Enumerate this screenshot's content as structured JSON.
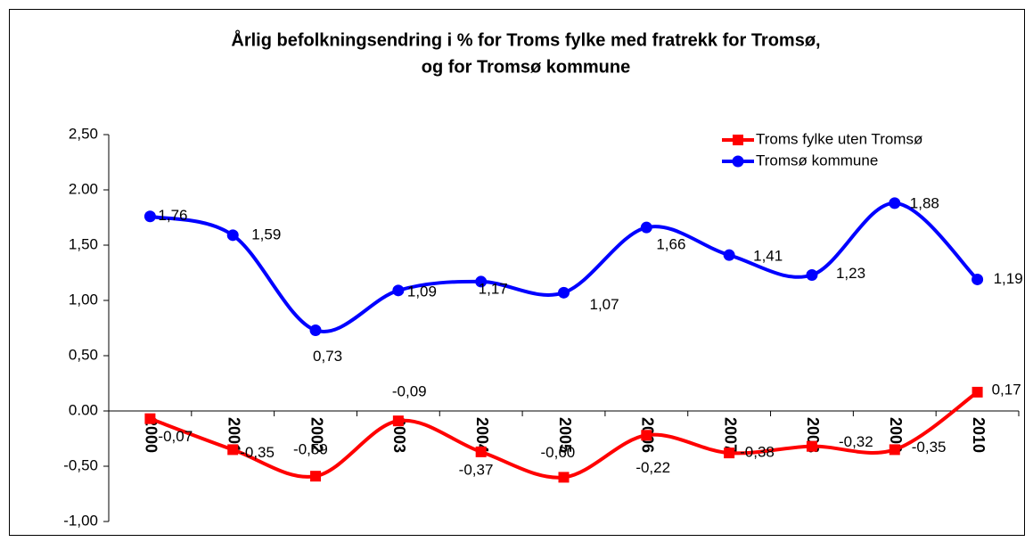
{
  "chart_data": {
    "type": "line",
    "title": [
      "Årlig befolkningsendring i % for Troms fylke med fratrekk for Tromsø,",
      "og for Tromsø kommune"
    ],
    "categories": [
      "2000",
      "2001",
      "2002",
      "2003",
      "2004",
      "2005",
      "2006",
      "2007",
      "2008",
      "2009",
      "2010"
    ],
    "series": [
      {
        "name": "Troms fylke uten Tromsø",
        "color": "#ff0000",
        "marker": "square",
        "values": [
          -0.07,
          -0.35,
          -0.59,
          -0.09,
          -0.37,
          -0.6,
          -0.22,
          -0.38,
          -0.32,
          -0.35,
          0.17
        ],
        "value_labels": [
          "-0,07",
          "-0,35",
          "-0,59",
          "-0,09",
          "-0,37",
          "-0,60",
          "-0,22",
          "-0,38",
          "-0,32",
          "-0,35",
          "0,17"
        ]
      },
      {
        "name": "Tromsø kommune",
        "color": "#0000ff",
        "marker": "circle",
        "values": [
          1.76,
          1.59,
          0.73,
          1.09,
          1.17,
          1.07,
          1.66,
          1.41,
          1.23,
          1.88,
          1.19
        ],
        "value_labels": [
          "1,76",
          "1,59",
          "0,73",
          "1,09",
          "1,17",
          "1,07",
          "1,66",
          "1,41",
          "1,23",
          "1,88",
          "1,19"
        ]
      }
    ],
    "ylim": [
      -1,
      2.5
    ],
    "yticks": [
      {
        "value": 2.5,
        "label": "2,50"
      },
      {
        "value": 2,
        "label": "2.00"
      },
      {
        "value": 1.5,
        "label": "1,50"
      },
      {
        "value": 1,
        "label": "1,00"
      },
      {
        "value": 0.5,
        "label": "0,50"
      },
      {
        "value": 0,
        "label": "0.00"
      },
      {
        "value": -0.5,
        "label": "-0,50"
      },
      {
        "value": -1,
        "label": "-1,00"
      }
    ],
    "smooth": true,
    "legend": "top-right"
  }
}
